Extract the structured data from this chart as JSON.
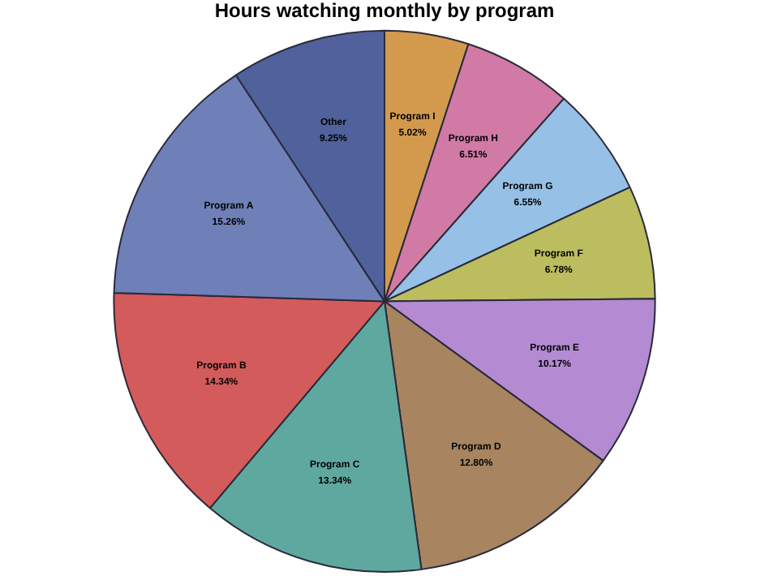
{
  "chart_data": {
    "type": "pie",
    "title": "Hours watching monthly by program",
    "categories": [
      "Program I",
      "Program H",
      "Program G",
      "Program F",
      "Program E",
      "Program D",
      "Program C",
      "Program B",
      "Program A",
      "Other"
    ],
    "values": [
      5.02,
      6.51,
      6.55,
      6.78,
      10.17,
      12.8,
      13.34,
      14.34,
      15.26,
      9.25
    ],
    "colors": [
      "#d39a4e",
      "#d17aa5",
      "#96c0e6",
      "#bcbd5e",
      "#b48bd2",
      "#a88560",
      "#5fa8a0",
      "#d45b5b",
      "#6f7fb8",
      "#51619c"
    ],
    "value_labels": [
      "5.02%",
      "6.51%",
      "6.55%",
      "6.78%",
      "10.17%",
      "12.80%",
      "13.34%",
      "14.34%",
      "15.26%",
      "9.25%"
    ],
    "legend": false
  }
}
